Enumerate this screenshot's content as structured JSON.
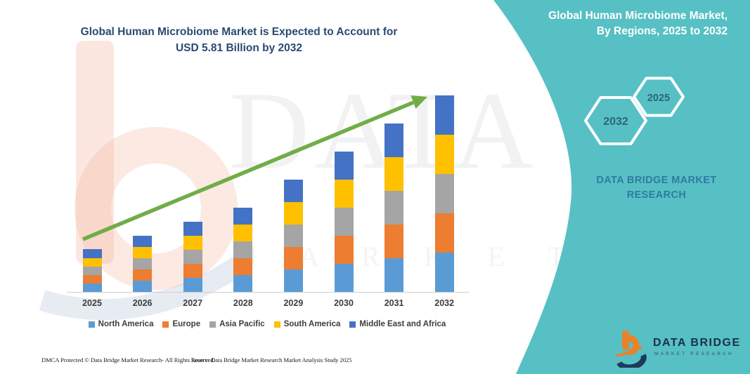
{
  "chart": {
    "title_line1": "Global Human Microbiome Market is Expected to Account for",
    "title_line2": "USD 5.81 Billion by 2032"
  },
  "chart_data": {
    "type": "bar",
    "stacked": true,
    "title": "Global Human Microbiome Market is Expected to Account for USD 5.81 Billion by 2032",
    "unit": "USD Billion",
    "categories": [
      "2025",
      "2026",
      "2027",
      "2028",
      "2029",
      "2030",
      "2031",
      "2032"
    ],
    "series": [
      {
        "name": "North America",
        "color": "#5B9BD5",
        "values": [
          0.26,
          0.33,
          0.42,
          0.5,
          0.67,
          0.84,
          1.0,
          1.16
        ]
      },
      {
        "name": "Europe",
        "color": "#ED7D31",
        "values": [
          0.26,
          0.33,
          0.42,
          0.5,
          0.67,
          0.84,
          1.0,
          1.16
        ]
      },
      {
        "name": "Asia Pacific",
        "color": "#A5A5A5",
        "values": [
          0.26,
          0.33,
          0.41,
          0.5,
          0.66,
          0.84,
          1.0,
          1.16
        ]
      },
      {
        "name": "South America",
        "color": "#FFC000",
        "values": [
          0.26,
          0.34,
          0.42,
          0.51,
          0.67,
          0.84,
          0.99,
          1.17
        ]
      },
      {
        "name": "Middle East and Africa",
        "color": "#4472C4",
        "values": [
          0.27,
          0.34,
          0.41,
          0.51,
          0.66,
          0.83,
          0.99,
          1.16
        ]
      }
    ],
    "totals": [
      1.31,
      1.67,
      2.08,
      2.52,
      3.33,
      4.19,
      4.98,
      5.81
    ],
    "xlabel": "",
    "ylabel": "",
    "value_axis_visible": false,
    "gridlines": false,
    "legend_position": "bottom",
    "trend_arrow_color": "#70AD47"
  },
  "side_panel": {
    "accent_color": "#57C0C4",
    "title_line1": "Global Human Microbiome Market,",
    "title_line2": "By Regions, 2025 to 2032",
    "hexagons": [
      {
        "label": "2032"
      },
      {
        "label": "2025"
      }
    ],
    "brand_line1": "DATA BRIDGE MARKET",
    "brand_line2": "RESEARCH"
  },
  "logo": {
    "name": "DATA BRIDGE",
    "sub": "MARKET RESEARCH"
  },
  "watermarks": {
    "big": "DATA BRIDGE",
    "sub": "M A R K E T   R E S E A R C H"
  },
  "footer": {
    "dmca": "DMCA Protected © Data Bridge Market Research-  All Rights Reserved.",
    "source": "Source: Data Bridge Market Research  Market Analysis Study 2025"
  }
}
